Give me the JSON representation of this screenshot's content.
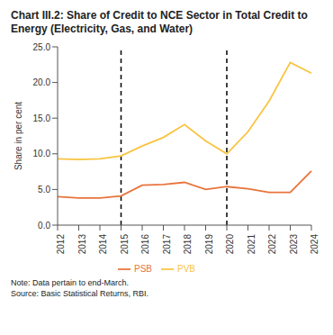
{
  "chart_data": {
    "type": "line",
    "title": "Chart III.2: Share of Credit to NCE Sector in Total Credit to Energy (Electricity, Gas, and Water)",
    "y_label": "Share in per cent",
    "categories": [
      "2012",
      "2013",
      "2014",
      "2015",
      "2016",
      "2017",
      "2018",
      "2019",
      "2020",
      "2021",
      "2022",
      "2023",
      "2024"
    ],
    "series": [
      {
        "name": "PSB",
        "color": "#e8743b",
        "values": [
          4.0,
          3.8,
          3.8,
          4.1,
          5.6,
          5.7,
          6.0,
          5.0,
          5.4,
          5.1,
          4.6,
          4.6,
          7.6
        ]
      },
      {
        "name": "PVB",
        "color": "#f9c440",
        "values": [
          9.3,
          9.2,
          9.3,
          9.7,
          11.1,
          12.3,
          14.1,
          11.8,
          10.0,
          13.1,
          17.4,
          22.8,
          21.3
        ]
      }
    ],
    "reference_lines": [
      "2015",
      "2020"
    ],
    "ylim": [
      0,
      25
    ],
    "yticks": [
      {
        "value": 0,
        "label": "0.0"
      },
      {
        "value": 5,
        "label": "5.0"
      },
      {
        "value": 10,
        "label": "10.0"
      },
      {
        "value": 15,
        "label": "15.0"
      },
      {
        "value": 20,
        "label": "20.0"
      },
      {
        "value": 25,
        "label": "25.0"
      }
    ],
    "grid": false,
    "legend": "bottom",
    "notes": [
      "Note: Data pertain to end-March.",
      "Source: Basic Statistical Returns, RBI."
    ]
  }
}
